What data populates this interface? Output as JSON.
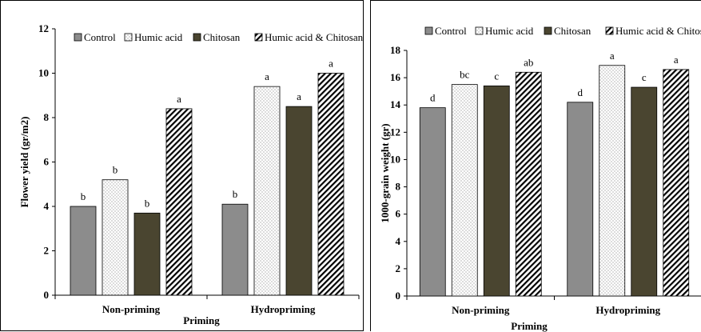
{
  "legend": [
    "Control",
    "Humic acid",
    "Chitosan",
    "Humic acid & Chitosan"
  ],
  "xlabel": "Priming",
  "categories": [
    "Non-priming",
    "Hydropriming"
  ],
  "colors": {
    "control": "#8c8c8c",
    "humic": "#ffffff",
    "chitosan": "#4a4530",
    "combined": "#ffffff"
  },
  "chart_data": [
    {
      "type": "bar",
      "ylabel": "Flower yield (gr/m2)",
      "xlabel": "Priming",
      "categories": [
        "Non-priming",
        "Hydropriming"
      ],
      "ylim": [
        0,
        12
      ],
      "yticks": [
        0,
        2,
        4,
        6,
        8,
        10,
        12
      ],
      "legend_position": "top",
      "series": [
        {
          "name": "Control",
          "values": [
            4.0,
            4.1
          ],
          "letters": [
            "b",
            "b"
          ]
        },
        {
          "name": "Humic acid",
          "values": [
            5.2,
            9.4
          ],
          "letters": [
            "b",
            "a"
          ]
        },
        {
          "name": "Chitosan",
          "values": [
            3.7,
            8.5
          ],
          "letters": [
            "b",
            "a"
          ]
        },
        {
          "name": "Humic acid & Chitosan",
          "values": [
            8.4,
            10.0
          ],
          "letters": [
            "a",
            "a"
          ]
        }
      ]
    },
    {
      "type": "bar",
      "ylabel": "1000-grain weight (gr)",
      "xlabel": "Priming",
      "categories": [
        "Non-priming",
        "Hydropriming"
      ],
      "ylim": [
        0,
        18
      ],
      "yticks": [
        0,
        2,
        4,
        6,
        8,
        10,
        12,
        14,
        16,
        18
      ],
      "legend_position": "top",
      "series": [
        {
          "name": "Control",
          "values": [
            13.8,
            14.2
          ],
          "letters": [
            "d",
            "d"
          ]
        },
        {
          "name": "Humic acid",
          "values": [
            15.5,
            16.9
          ],
          "letters": [
            "bc",
            "a"
          ]
        },
        {
          "name": "Chitosan",
          "values": [
            15.4,
            15.3
          ],
          "letters": [
            "c",
            "c"
          ]
        },
        {
          "name": "Humic acid & Chitosan",
          "values": [
            16.4,
            16.6
          ],
          "letters": [
            "ab",
            "a"
          ]
        }
      ]
    }
  ]
}
